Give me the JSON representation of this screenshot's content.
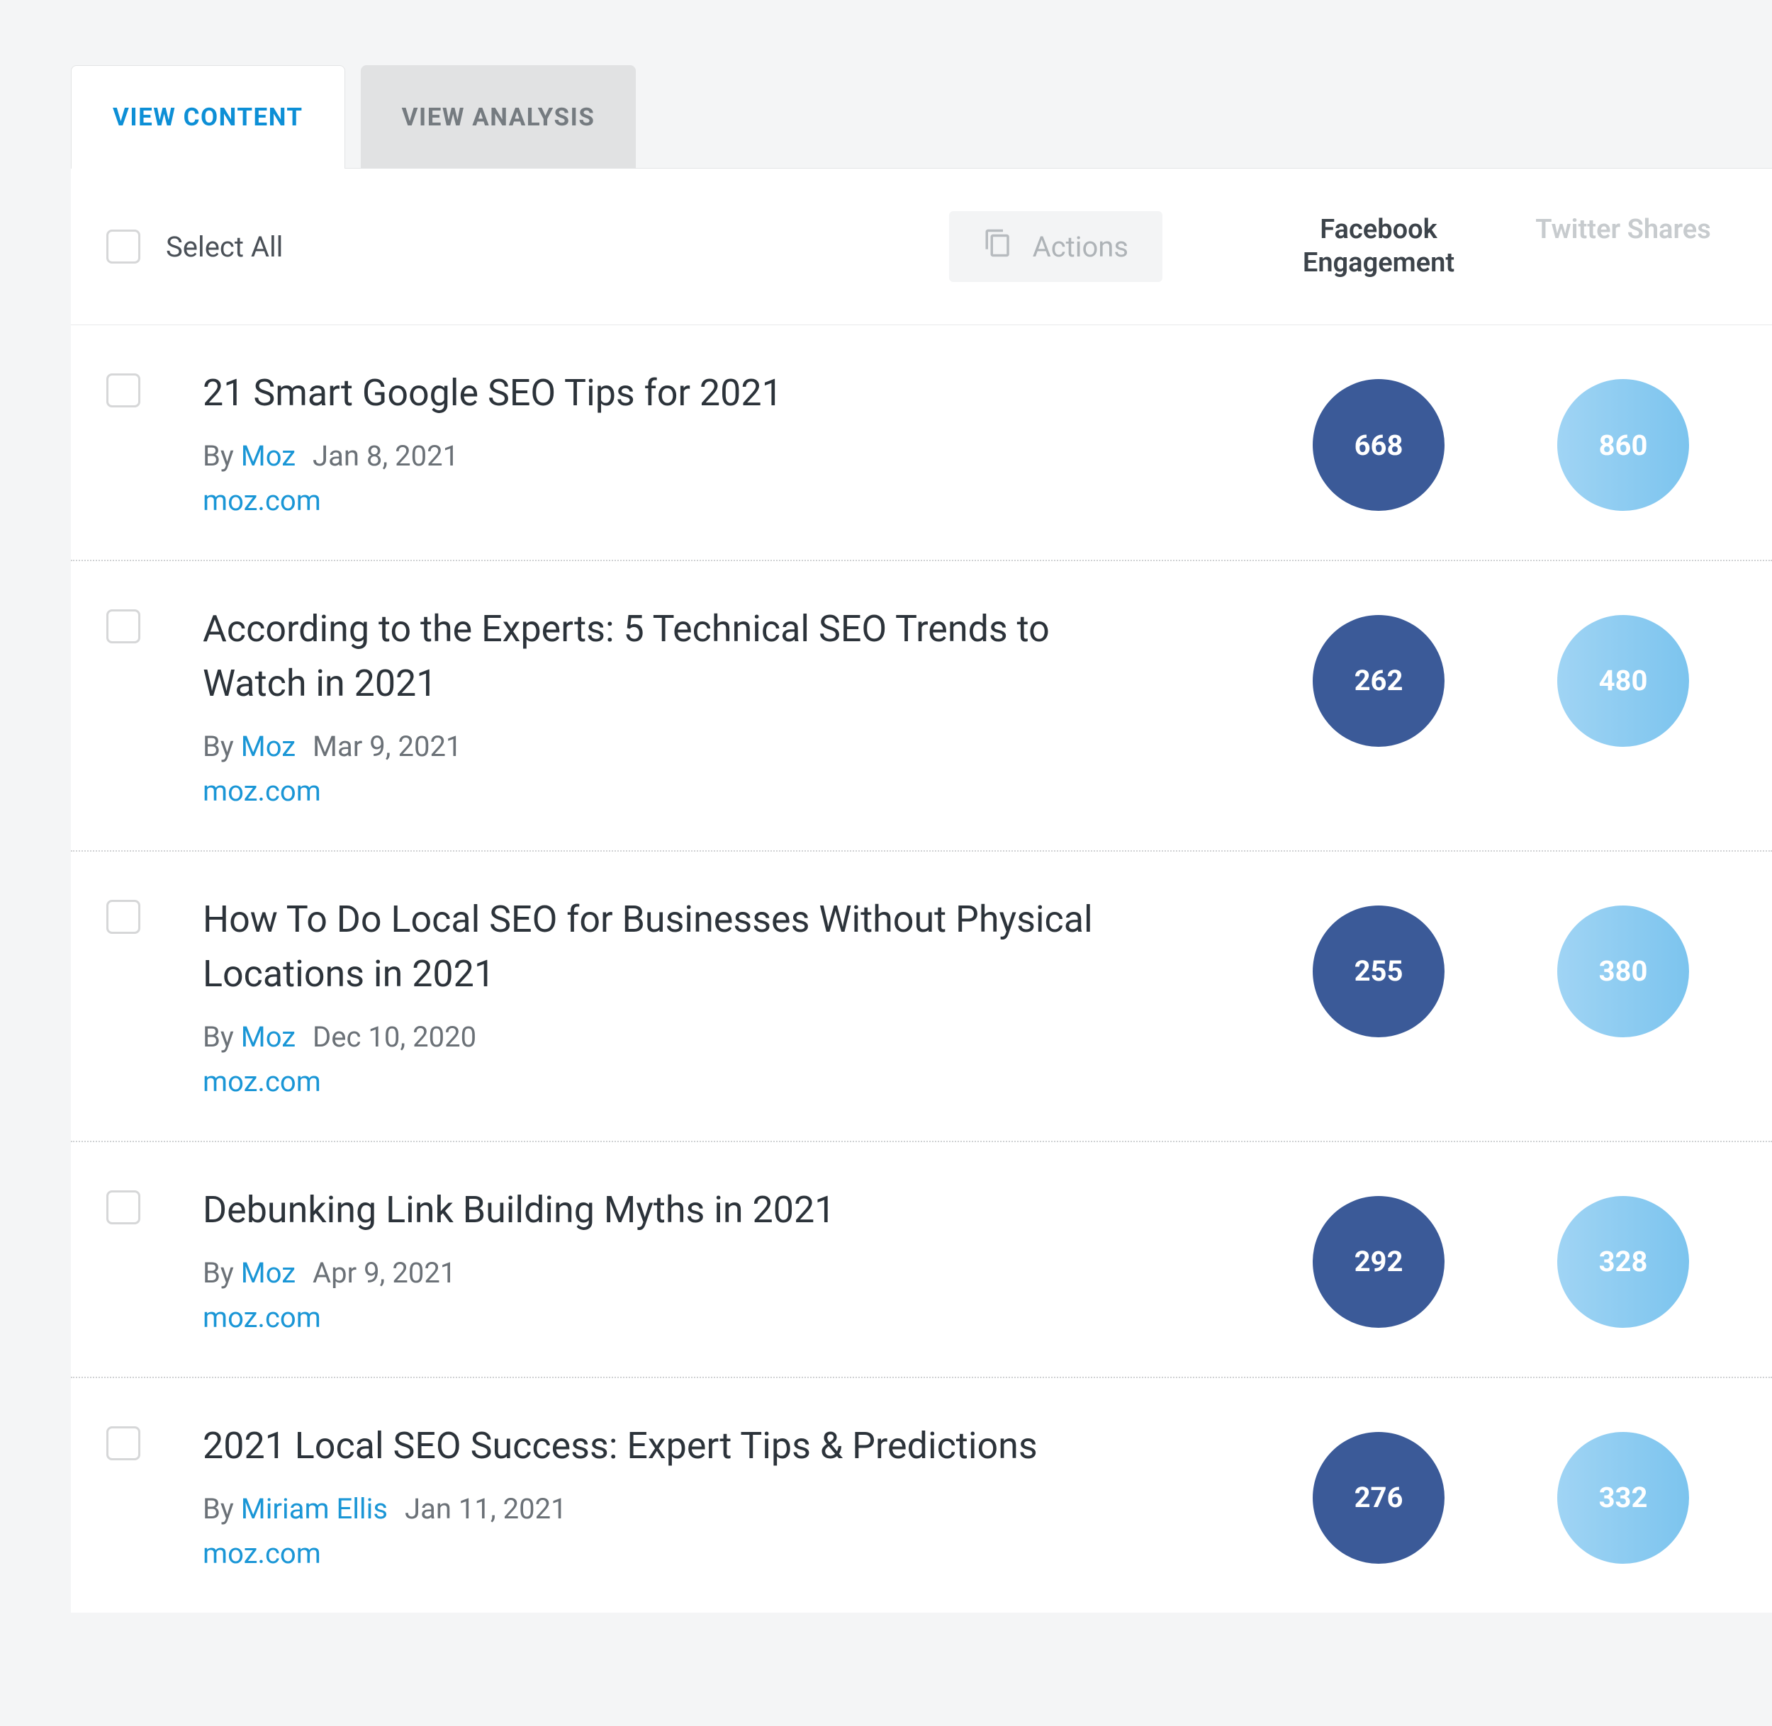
{
  "tabs": {
    "content": "VIEW CONTENT",
    "analysis": "VIEW ANALYSIS"
  },
  "toolbar": {
    "select_all": "Select All",
    "actions": "Actions"
  },
  "columns": {
    "facebook": "Facebook Engagement",
    "twitter": "Twitter Shares"
  },
  "by_label": "By ",
  "colors": {
    "facebook_bubble": "#3b5a98",
    "twitter_bubble_start": "#a0d4f4",
    "twitter_bubble_end": "#7cc4ee",
    "active_tab_text": "#0d8fd6",
    "inactive_tab_bg": "#e1e2e3",
    "link": "#1a96d6",
    "panel_bg": "#ffffff",
    "page_bg": "#f4f5f6"
  },
  "rows": [
    {
      "title": "21 Smart Google SEO Tips for 2021",
      "author": "Moz",
      "date": "Jan 8, 2021",
      "domain": "moz.com",
      "facebook": "668",
      "twitter": "860"
    },
    {
      "title": "According to the Experts: 5 Technical SEO Trends to Watch in 2021",
      "author": "Moz",
      "date": "Mar 9, 2021",
      "domain": "moz.com",
      "facebook": "262",
      "twitter": "480"
    },
    {
      "title": "How To Do Local SEO for Businesses Without Physical Locations in 2021",
      "author": "Moz",
      "date": "Dec 10, 2020",
      "domain": "moz.com",
      "facebook": "255",
      "twitter": "380"
    },
    {
      "title": "Debunking Link Building Myths in 2021",
      "author": "Moz",
      "date": "Apr 9, 2021",
      "domain": "moz.com",
      "facebook": "292",
      "twitter": "328"
    },
    {
      "title": "2021 Local SEO Success: Expert Tips & Predictions",
      "author": "Miriam Ellis",
      "date": "Jan 11, 2021",
      "domain": "moz.com",
      "facebook": "276",
      "twitter": "332"
    }
  ]
}
